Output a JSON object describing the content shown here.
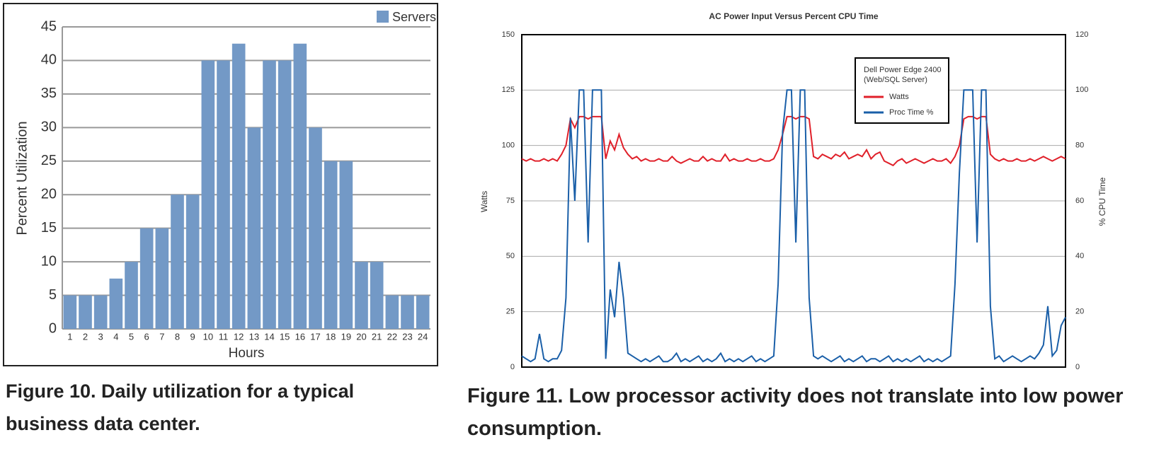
{
  "chart_data": [
    {
      "type": "bar",
      "y_label": "Percent Utilization",
      "x_label": "Hours",
      "categories": [
        "1",
        "2",
        "3",
        "4",
        "5",
        "6",
        "7",
        "8",
        "9",
        "10",
        "11",
        "12",
        "13",
        "14",
        "15",
        "16",
        "17",
        "18",
        "19",
        "20",
        "21",
        "22",
        "23",
        "24"
      ],
      "series": [
        {
          "name": "Servers",
          "color": "#7399c6",
          "values": [
            5,
            5,
            5,
            7.5,
            10,
            15,
            15,
            20,
            20,
            40,
            40,
            42.5,
            30,
            40,
            40,
            42.5,
            30,
            25,
            25,
            10,
            10,
            5,
            5,
            5
          ]
        }
      ],
      "ylim": [
        0,
        45
      ],
      "yticks": [
        0,
        5,
        10,
        15,
        20,
        25,
        30,
        35,
        40,
        45
      ],
      "grid": true,
      "legend": "top-right",
      "caption": "Figure 10. Daily utilization for a typical business data center."
    },
    {
      "type": "line",
      "title": "AC Power Input Versus Percent CPU Time",
      "y_label": "Watts",
      "y2_label": "% CPU Time",
      "legend_title": [
        "Dell Power Edge 2400",
        "(Web/SQL Server)"
      ],
      "series": [
        {
          "name": "Watts",
          "color": "#e0202a",
          "values": [
            94,
            93,
            94,
            93,
            93,
            94,
            93,
            94,
            93,
            96,
            100,
            112,
            108,
            113,
            113,
            112,
            113,
            113,
            113,
            94,
            102,
            98,
            105,
            99,
            96,
            94,
            95,
            93,
            94,
            93,
            93,
            94,
            93,
            93,
            95,
            93,
            92,
            93,
            94,
            93,
            93,
            95,
            93,
            94,
            93,
            93,
            96,
            93,
            94,
            93,
            93,
            94,
            93,
            93,
            94,
            93,
            93,
            94,
            98,
            105,
            113,
            113,
            112,
            113,
            113,
            112,
            95,
            94,
            96,
            95,
            94,
            96,
            95,
            97,
            94,
            95,
            96,
            95,
            98,
            94,
            96,
            97,
            93,
            92,
            91,
            93,
            94,
            92,
            93,
            94,
            93,
            92,
            93,
            94,
            93,
            93,
            94,
            92,
            95,
            100,
            112,
            113,
            113,
            112,
            113,
            113,
            96,
            94,
            93,
            94,
            93,
            93,
            94,
            93,
            93,
            94,
            93,
            94,
            95,
            94,
            93,
            94,
            95,
            94
          ]
        },
        {
          "name": "Proc Time %",
          "color": "#1a5fa8",
          "axis": "y2",
          "values": [
            4,
            3,
            2,
            3,
            12,
            3,
            2,
            3,
            3,
            6,
            25,
            90,
            60,
            100,
            100,
            45,
            100,
            100,
            100,
            3,
            28,
            18,
            38,
            25,
            5,
            4,
            3,
            2,
            3,
            2,
            3,
            4,
            2,
            2,
            3,
            5,
            2,
            3,
            2,
            3,
            4,
            2,
            3,
            2,
            3,
            5,
            2,
            3,
            2,
            3,
            2,
            3,
            4,
            2,
            3,
            2,
            3,
            4,
            30,
            85,
            100,
            100,
            45,
            100,
            100,
            25,
            4,
            3,
            4,
            3,
            2,
            3,
            4,
            2,
            3,
            2,
            3,
            4,
            2,
            3,
            3,
            2,
            3,
            4,
            2,
            3,
            2,
            3,
            2,
            3,
            4,
            2,
            3,
            2,
            3,
            2,
            3,
            4,
            30,
            70,
            100,
            100,
            100,
            45,
            100,
            100,
            22,
            3,
            4,
            2,
            3,
            4,
            3,
            2,
            3,
            4,
            3,
            5,
            8,
            22,
            4,
            6,
            15,
            18
          ]
        }
      ],
      "ylim": [
        0,
        150
      ],
      "yticks": [
        0,
        25,
        50,
        75,
        100,
        125,
        150
      ],
      "y2lim": [
        0,
        120
      ],
      "y2ticks": [
        0,
        20,
        40,
        60,
        80,
        100,
        120
      ],
      "grid": true,
      "legend": "top-right",
      "caption": "Figure 11. Low processor activity does not translate into low power consumption."
    }
  ]
}
